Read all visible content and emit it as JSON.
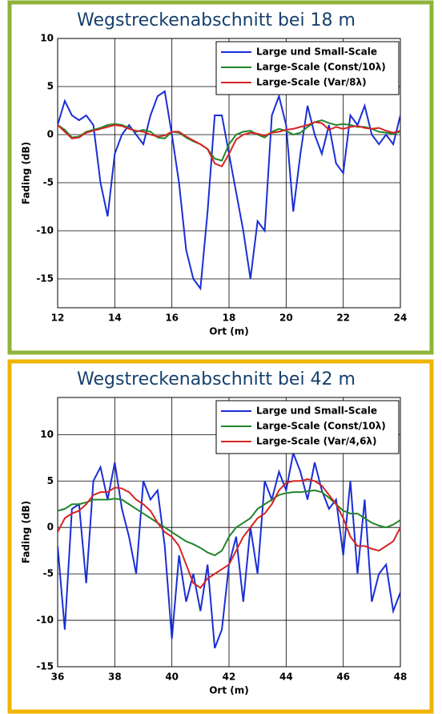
{
  "chart_data": [
    {
      "type": "line",
      "title": "Wegstreckenabschnitt bei 18 m",
      "xlabel": "Ort (m)",
      "ylabel": "Fading (dB)",
      "frame_color": "#8fb33a",
      "x": [
        12,
        12.25,
        12.5,
        12.75,
        13,
        13.25,
        13.5,
        13.75,
        14,
        14.25,
        14.5,
        14.75,
        15,
        15.25,
        15.5,
        15.75,
        16,
        16.25,
        16.5,
        16.75,
        17,
        17.25,
        17.5,
        17.75,
        18,
        18.25,
        18.5,
        18.75,
        19,
        19.25,
        19.5,
        19.75,
        20,
        20.25,
        20.5,
        20.75,
        21,
        21.25,
        21.5,
        21.75,
        22,
        22.25,
        22.5,
        22.75,
        23,
        23.25,
        23.5,
        23.75,
        24
      ],
      "series": [
        {
          "name": "Large und Small-Scale",
          "color": "#1a2ed6",
          "values": [
            1,
            3.5,
            2,
            1.5,
            2,
            1,
            -5,
            -8.5,
            -2,
            0,
            1,
            0,
            -1,
            2,
            4,
            4.5,
            0,
            -5,
            -12,
            -15,
            -16,
            -8,
            2,
            2,
            -2,
            -6,
            -10,
            -15,
            -9,
            -10,
            2,
            4,
            1,
            -8,
            -2,
            3,
            0,
            -2,
            1,
            -3,
            -4,
            2,
            1,
            3,
            0,
            -1,
            0,
            -1,
            2
          ]
        },
        {
          "name": "Large-Scale (Const/10λ)",
          "color": "#22852a",
          "values": [
            1,
            0.5,
            -0.3,
            -0.2,
            0.3,
            0.5,
            0.7,
            1,
            1.1,
            1,
            0.7,
            0.3,
            0.5,
            0.3,
            -0.3,
            -0.4,
            0.3,
            0.2,
            -0.3,
            -0.7,
            -1,
            -1.5,
            -2.5,
            -2.7,
            -1,
            0,
            0.3,
            0.4,
            0,
            -0.3,
            0.3,
            0.6,
            0.4,
            0,
            0.2,
            0.8,
            1.3,
            1.5,
            1.2,
            1,
            1.1,
            1,
            0.8,
            0.8,
            0.6,
            0.3,
            0.2,
            0.1,
            0.3
          ]
        },
        {
          "name": "Large-Scale (Var/8λ)",
          "color": "#d62424",
          "values": [
            1,
            0.3,
            -0.4,
            -0.3,
            0.2,
            0.4,
            0.6,
            0.8,
            1,
            0.9,
            0.6,
            0.4,
            0.3,
            0,
            -0.2,
            -0.1,
            0.3,
            0.3,
            -0.2,
            -0.6,
            -1,
            -1.5,
            -3,
            -3.3,
            -2,
            -0.5,
            0,
            0.2,
            0.1,
            -0.1,
            0.2,
            0.3,
            0.5,
            0.6,
            0.8,
            1,
            1.3,
            1.2,
            0.5,
            0.8,
            0.6,
            0.8,
            0.9,
            0.7,
            0.6,
            0.7,
            0.4,
            0.2,
            0.4
          ]
        }
      ],
      "xlim": [
        12,
        24
      ],
      "ylim": [
        -18,
        10
      ],
      "xticks": [
        12,
        14,
        16,
        18,
        20,
        22,
        24
      ],
      "yticks": [
        10,
        5,
        0,
        -5,
        -10,
        -15
      ],
      "grid": true,
      "legend": "upper right"
    },
    {
      "type": "line",
      "title": "Wegstreckenabschnitt bei 42 m",
      "xlabel": "Ort (m)",
      "ylabel": "Fading (dB)",
      "frame_color": "#f0b400",
      "x": [
        36,
        36.25,
        36.5,
        36.75,
        37,
        37.25,
        37.5,
        37.75,
        38,
        38.25,
        38.5,
        38.75,
        39,
        39.25,
        39.5,
        39.75,
        40,
        40.25,
        40.5,
        40.75,
        41,
        41.25,
        41.5,
        41.75,
        42,
        42.25,
        42.5,
        42.75,
        43,
        43.25,
        43.5,
        43.75,
        44,
        44.25,
        44.5,
        44.75,
        45,
        45.25,
        45.5,
        45.75,
        46,
        46.25,
        46.5,
        46.75,
        47,
        47.25,
        47.5,
        47.75,
        48
      ],
      "series": [
        {
          "name": "Large und Small-Scale",
          "color": "#1a2ed6",
          "values": [
            -2,
            -11,
            2,
            2.5,
            -6,
            5,
            6.5,
            3,
            7,
            2,
            -1,
            -5,
            5,
            3,
            4,
            -2,
            -12,
            -3,
            -8,
            -5,
            -9,
            -4,
            -13,
            -11,
            -4,
            -1,
            -8,
            0,
            -5,
            5,
            3,
            6,
            4,
            8,
            6,
            3,
            7,
            4,
            2,
            3,
            -3,
            5,
            -5,
            3,
            -8,
            -5,
            -4,
            -9,
            -7
          ]
        },
        {
          "name": "Large-Scale (Const/10λ)",
          "color": "#22852a",
          "values": [
            1.8,
            2,
            2.5,
            2.5,
            2.7,
            3,
            3,
            3,
            3.1,
            3,
            2.5,
            2,
            1.5,
            1,
            0.5,
            0,
            -0.5,
            -1,
            -1.5,
            -1.8,
            -2.2,
            -2.7,
            -3,
            -2.5,
            -1,
            0,
            0.5,
            1,
            2,
            2.5,
            3,
            3.5,
            3.7,
            3.8,
            3.8,
            3.9,
            4,
            3.8,
            3.2,
            2.5,
            1.8,
            1.5,
            1.5,
            1,
            0.5,
            0.2,
            0,
            0.3,
            0.8
          ]
        },
        {
          "name": "Large-Scale (Var/4,6λ)",
          "color": "#d62424",
          "values": [
            -0.5,
            1,
            1.5,
            1.8,
            2.5,
            3.5,
            3.8,
            3.8,
            4.3,
            4.2,
            3.8,
            3,
            2.5,
            1.8,
            0.5,
            -0.5,
            -1,
            -2,
            -4,
            -6,
            -6.5,
            -5.5,
            -5,
            -4.5,
            -4,
            -2.5,
            -1,
            0,
            1,
            1.5,
            2.5,
            4,
            4.8,
            5,
            5,
            5.2,
            5,
            4.5,
            3.5,
            2.5,
            1,
            -1,
            -2,
            -2,
            -2.3,
            -2.5,
            -2,
            -1.5,
            0
          ]
        }
      ],
      "xlim": [
        36,
        48
      ],
      "ylim": [
        -15,
        14
      ],
      "xticks": [
        36,
        38,
        40,
        42,
        44,
        46,
        48
      ],
      "yticks": [
        10,
        5,
        0,
        -5,
        -10,
        -15
      ],
      "grid": true,
      "legend": "upper right"
    }
  ]
}
